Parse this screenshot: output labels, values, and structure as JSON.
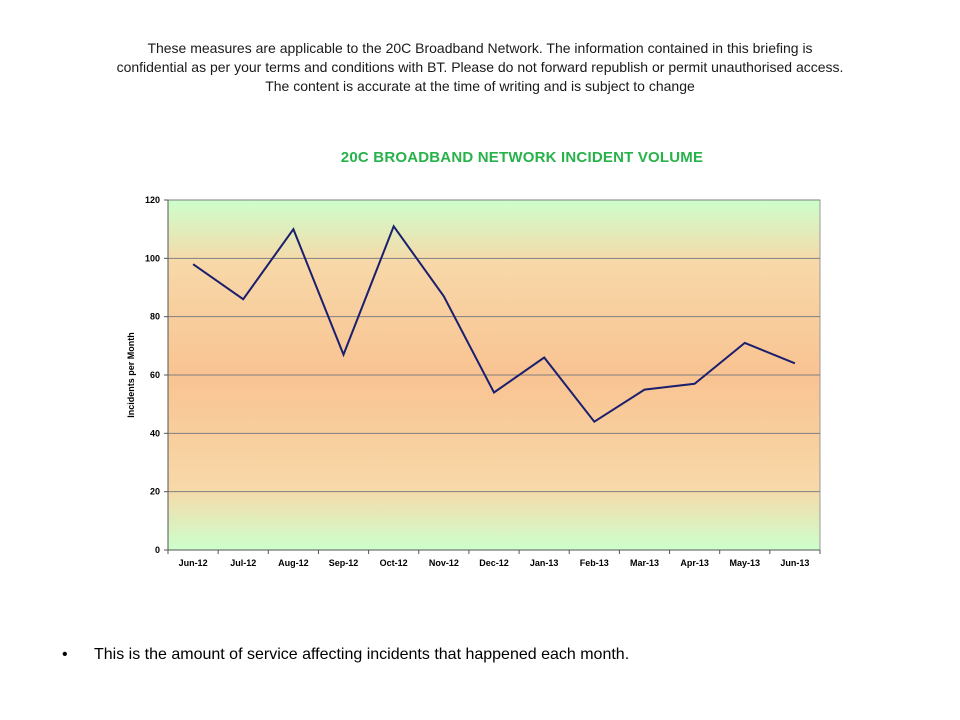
{
  "disclaimer": {
    "line1": "These measures are applicable to the 20C Broadband Network.  The information contained in this briefing is",
    "line2": "confidential as per your terms and conditions with BT.  Please do not forward republish or permit unauthorised access.",
    "line3": "The content is accurate at the time of writing and is subject to change"
  },
  "bullet": {
    "marker": "•",
    "text": "This is the amount of service affecting incidents that happened each month."
  },
  "chart_data": {
    "type": "line",
    "title": "20C BROADBAND NETWORK INCIDENT VOLUME",
    "xlabel": "",
    "ylabel": "Incidents per Month",
    "categories": [
      "Jun-12",
      "Jul-12",
      "Aug-12",
      "Sep-12",
      "Oct-12",
      "Nov-12",
      "Dec-12",
      "Jan-13",
      "Feb-13",
      "Mar-13",
      "Apr-13",
      "May-13",
      "Jun-13"
    ],
    "series": [
      {
        "values": [
          98,
          86,
          110,
          67,
          111,
          87,
          54,
          66,
          44,
          55,
          57,
          71,
          64
        ]
      }
    ],
    "ylim": [
      0,
      120
    ],
    "yticks": [
      0,
      20,
      40,
      60,
      80,
      100,
      120
    ],
    "grid": true,
    "legend": "none",
    "colors": {
      "line": "#1a1f6e",
      "title": "#27b24a",
      "band_outer": "#ccffcc",
      "band_middle": "#f8d8a8",
      "band_center": "#f9c392",
      "gridline": "#7f7f7f"
    }
  }
}
